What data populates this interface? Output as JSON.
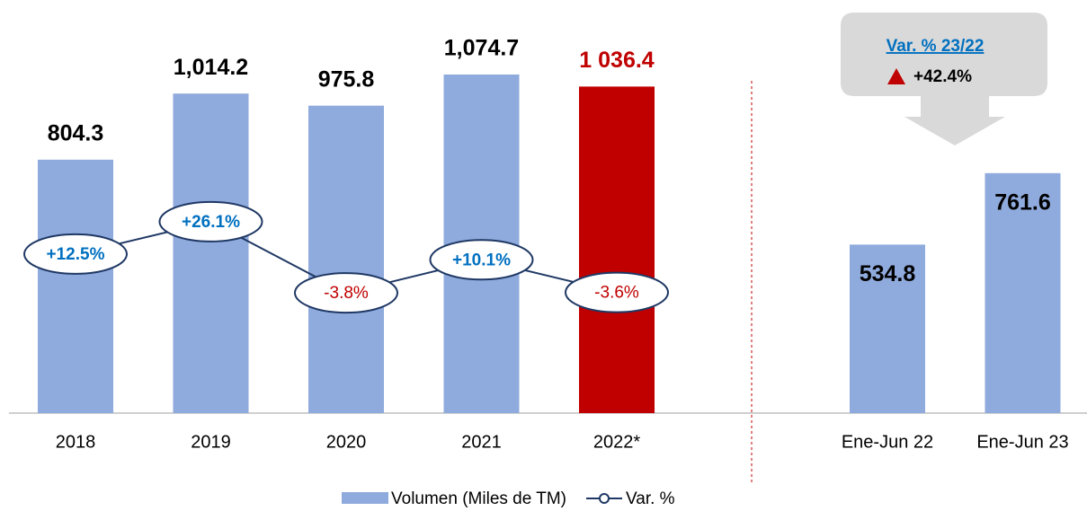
{
  "chart_data": {
    "type": "bar",
    "categories": [
      "2018",
      "2019",
      "2020",
      "2021",
      "2022*",
      "Ene-Jun 22",
      "Ene-Jun 23"
    ],
    "series": [
      {
        "name": "Volumen (Miles de TM)",
        "type": "bar",
        "color": "#8faadc",
        "colors": [
          "#8faadc",
          "#8faadc",
          "#8faadc",
          "#8faadc",
          "#c00000",
          "#8faadc",
          "#8faadc"
        ],
        "values": [
          804.3,
          1014.2,
          975.8,
          1074.7,
          1036.4,
          534.8,
          761.6
        ],
        "value_labels": [
          "804.3",
          "1,014.2",
          "975.8",
          "1,074.7",
          "1 036.4",
          "534.8",
          "761.6"
        ]
      },
      {
        "name": "Var. %",
        "type": "line",
        "axis": "y2",
        "color": "#1f3864",
        "values": [
          12.5,
          26.1,
          -3.8,
          10.1,
          -3.6,
          null,
          null
        ],
        "value_labels": [
          "+12.5%",
          "+26.1%",
          "-3.8%",
          "+10.1%",
          "-3.6%",
          null,
          null
        ]
      }
    ],
    "ylim": [
      0,
      1200
    ],
    "y2lim": [
      -54.3,
      104.5
    ],
    "annotation": {
      "title": "Var. % 23/22",
      "text": "+42.4%"
    }
  }
}
